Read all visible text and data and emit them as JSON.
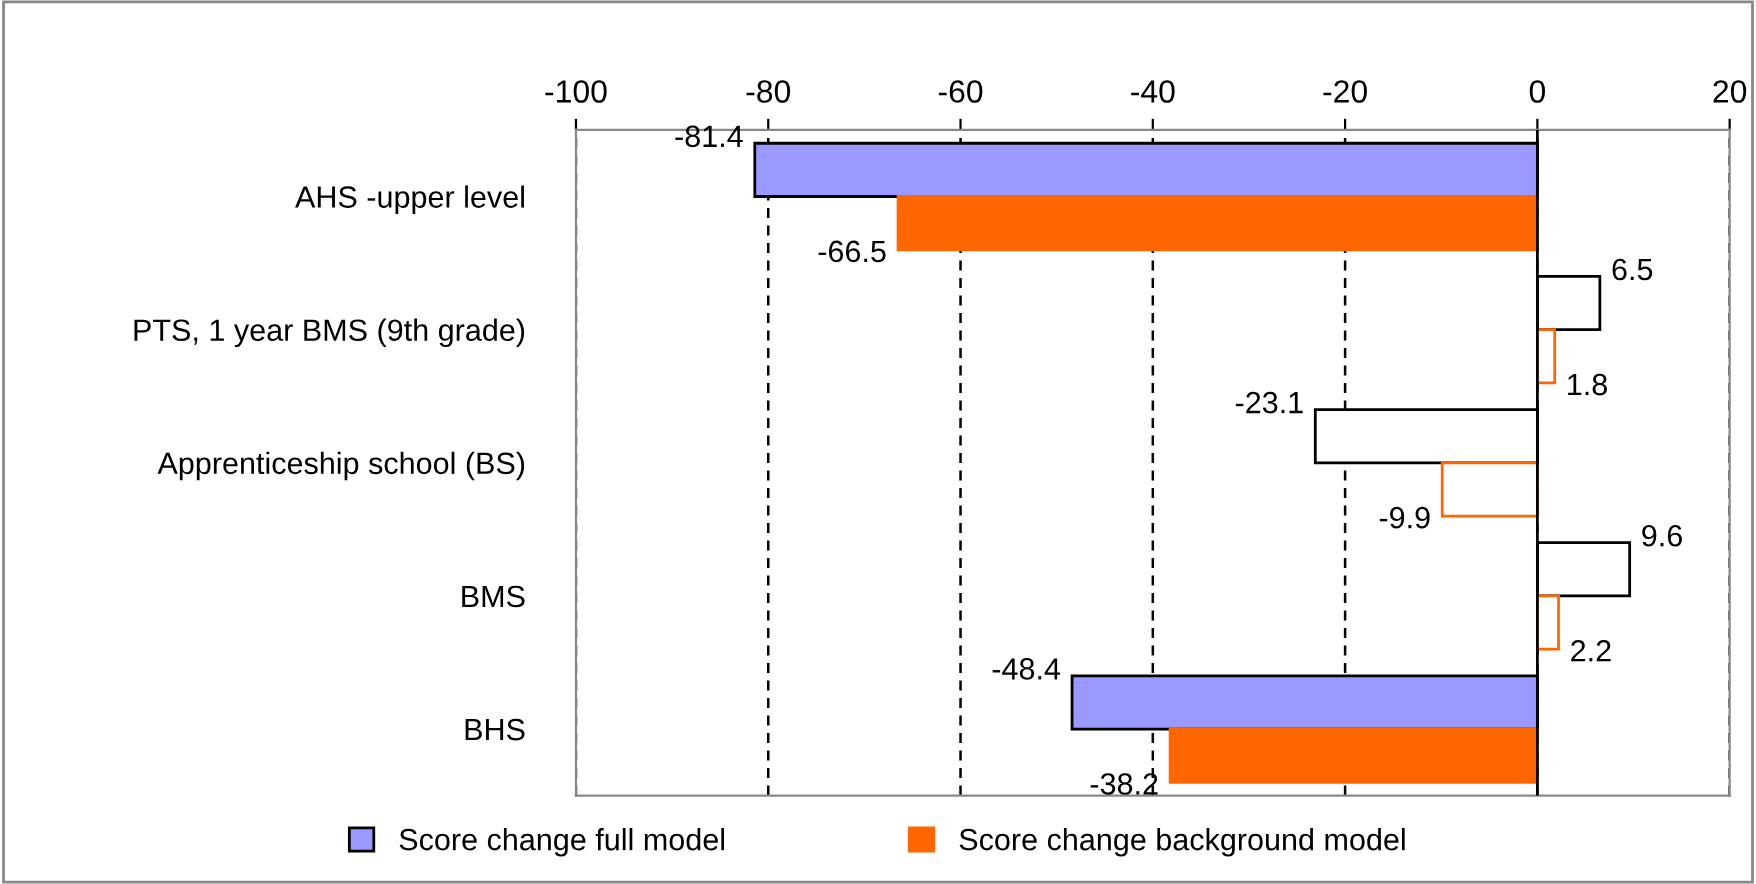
{
  "chart_data": {
    "type": "bar",
    "orientation": "horizontal",
    "categories": [
      "AHS -upper level",
      "PTS, 1 year BMS (9th grade)",
      "Apprenticeship school (BS)",
      "BMS",
      "BHS"
    ],
    "series": [
      {
        "name": "Score change full model",
        "color": "#9999ff",
        "colors": [
          "#9999ff",
          "#ffffff",
          "#ffffff",
          "#ffffff",
          "#9999ff"
        ],
        "values": [
          -81.4,
          6.5,
          -23.1,
          9.6,
          -48.4
        ]
      },
      {
        "name": "Score change background model",
        "color": "#ff6600",
        "colors": [
          "#ff6600",
          "#ffffff",
          "#ffffff",
          "#ffffff",
          "#ff6600"
        ],
        "values": [
          -66.5,
          1.8,
          -9.9,
          2.2,
          -38.2
        ]
      }
    ],
    "xlim": [
      -100,
      20
    ],
    "xticks": [
      -100,
      -80,
      -60,
      -40,
      -20,
      0,
      20
    ],
    "grid": "x",
    "legend": "bottom",
    "data_labels": true
  }
}
